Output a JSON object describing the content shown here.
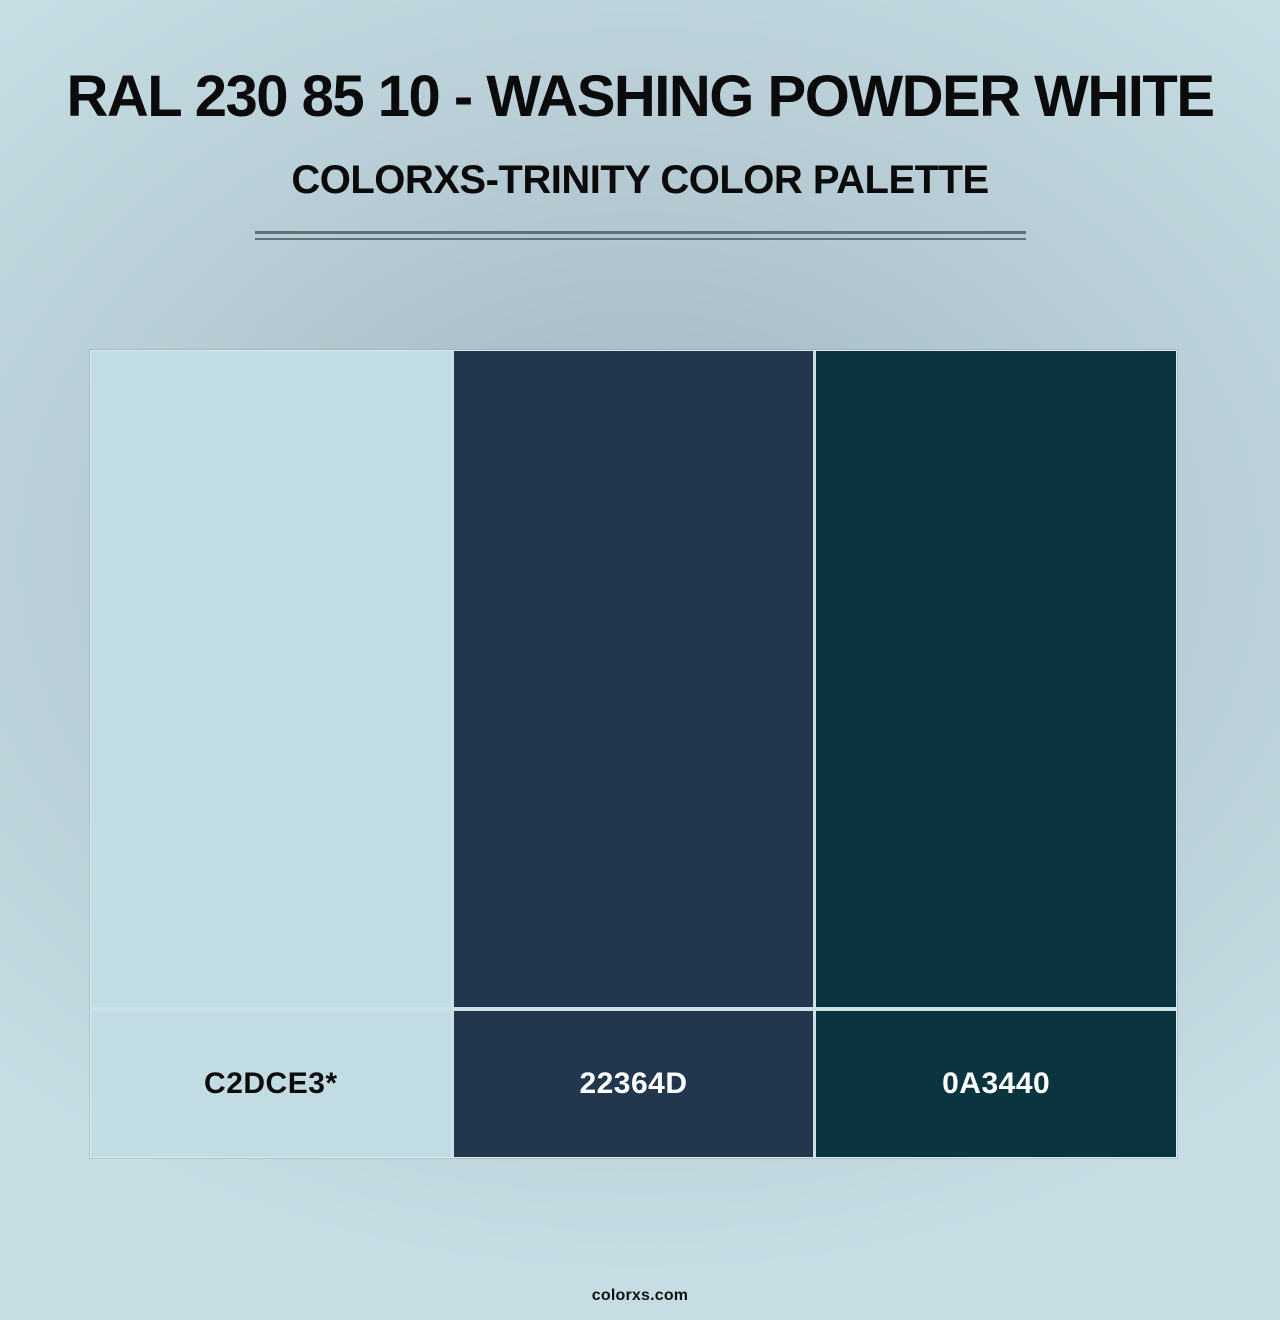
{
  "header": {
    "title": "RAL 230 85 10 - WASHING POWDER WHITE",
    "subtitle": "COLORXS-TRINITY COLOR PALETTE"
  },
  "palette": {
    "swatches": [
      {
        "label": "C2DCE3*",
        "color": "#C2DCE3",
        "label_color": "#0B0B0B"
      },
      {
        "label": "22364D",
        "color": "#22364D",
        "label_color": "#FFFFFF"
      },
      {
        "label": "0A3440",
        "color": "#0A3440",
        "label_color": "#FFFFFF"
      }
    ]
  },
  "footer": {
    "watermark": "colorxs.com"
  },
  "theme": {
    "divider_color": "#5F6F77",
    "background_center": "#A4BAC2",
    "background_edge": "#C6DDE4",
    "title_color": "#0B0B0B"
  }
}
